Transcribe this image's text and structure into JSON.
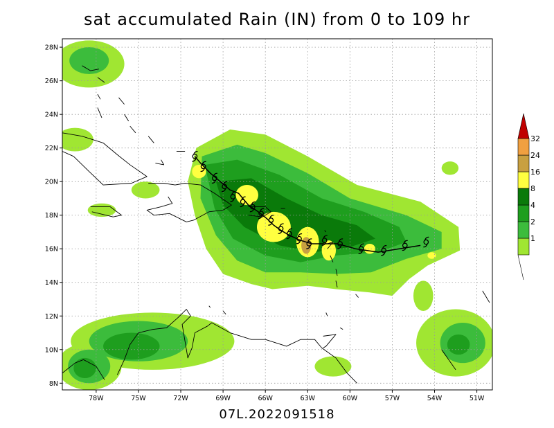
{
  "title": "sat accumulated Rain (IN) from 0 to 109 hr",
  "footer": "07L.2022091518",
  "lon_ticks": [
    {
      "lon": -78,
      "label": "78W"
    },
    {
      "lon": -75,
      "label": "75W"
    },
    {
      "lon": -72,
      "label": "72W"
    },
    {
      "lon": -69,
      "label": "69W"
    },
    {
      "lon": -66,
      "label": "66W"
    },
    {
      "lon": -63,
      "label": "63W"
    },
    {
      "lon": -60,
      "label": "60W"
    },
    {
      "lon": -57,
      "label": "57W"
    },
    {
      "lon": -54,
      "label": "54W"
    },
    {
      "lon": -51,
      "label": "51W"
    }
  ],
  "lat_ticks": [
    {
      "lat": 8,
      "label": "8N"
    },
    {
      "lat": 10,
      "label": "10N"
    },
    {
      "lat": 12,
      "label": "12N"
    },
    {
      "lat": 14,
      "label": "14N"
    },
    {
      "lat": 16,
      "label": "16N"
    },
    {
      "lat": 18,
      "label": "18N"
    },
    {
      "lat": 20,
      "label": "20N"
    },
    {
      "lat": 22,
      "label": "22N"
    },
    {
      "lat": 24,
      "label": "24N"
    },
    {
      "lat": 26,
      "label": "26N"
    },
    {
      "lat": 28,
      "label": "28N"
    }
  ],
  "extent": {
    "lon_min": -80.4,
    "lon_max": -49.9,
    "lat_min": 7.6,
    "lat_max": 28.5
  },
  "legend": {
    "labels": [
      "1",
      "2",
      "4",
      "8",
      "16",
      "24",
      "32"
    ],
    "colors": [
      "#a0e632",
      "#3cbc3c",
      "#1e9e1e",
      "#0a7a0a",
      "#ffff40",
      "#c8a040",
      "#f0a040",
      "#c00000"
    ]
  },
  "rain_areas": [
    {
      "level": 0,
      "shape": "polygon",
      "points": [
        [
          -70.9,
          22.0
        ],
        [
          -68.5,
          23.1
        ],
        [
          -66,
          22.8
        ],
        [
          -63,
          21.5
        ],
        [
          -59.5,
          19.8
        ],
        [
          -55,
          18.8
        ],
        [
          -52.3,
          17.3
        ],
        [
          -52.2,
          15.9
        ],
        [
          -54.5,
          15.0
        ],
        [
          -55.8,
          14.2
        ],
        [
          -57,
          13.2
        ],
        [
          -58.6,
          13.4
        ],
        [
          -61,
          13.6
        ],
        [
          -63,
          13.8
        ],
        [
          -65.5,
          13.6
        ],
        [
          -67,
          13.9
        ],
        [
          -69,
          14.5
        ],
        [
          -70.2,
          16.0
        ],
        [
          -71.0,
          18.0
        ],
        [
          -71.5,
          20.0
        ]
      ]
    },
    {
      "level": 0,
      "shape": "ellipse",
      "cx": -74,
      "cy": 10.5,
      "rx": 5.8,
      "ry": 1.7
    },
    {
      "level": 0,
      "shape": "ellipse",
      "cx": -78.5,
      "cy": 9.0,
      "rx": 2.3,
      "ry": 1.4
    },
    {
      "level": 0,
      "shape": "ellipse",
      "cx": -52.5,
      "cy": 10.4,
      "rx": 2.8,
      "ry": 2.0
    },
    {
      "level": 0,
      "shape": "ellipse",
      "cx": -78.5,
      "cy": 27.0,
      "rx": 2.5,
      "ry": 1.4
    },
    {
      "level": 0,
      "shape": "ellipse",
      "cx": -79.5,
      "cy": 22.5,
      "rx": 1.3,
      "ry": 0.7
    },
    {
      "level": 0,
      "shape": "ellipse",
      "cx": -77.6,
      "cy": 18.3,
      "rx": 1.0,
      "ry": 0.4
    },
    {
      "level": 0,
      "shape": "ellipse",
      "cx": -74.5,
      "cy": 19.5,
      "rx": 1.0,
      "ry": 0.5
    },
    {
      "level": 0,
      "shape": "ellipse",
      "cx": -52.9,
      "cy": 20.8,
      "rx": 0.6,
      "ry": 0.4
    },
    {
      "level": 0,
      "shape": "ellipse",
      "cx": -61.2,
      "cy": 9.0,
      "rx": 1.3,
      "ry": 0.6
    },
    {
      "level": 0,
      "shape": "ellipse",
      "cx": -54.8,
      "cy": 13.2,
      "rx": 0.7,
      "ry": 0.9
    },
    {
      "level": 1,
      "shape": "polygon",
      "points": [
        [
          -70.5,
          21.5
        ],
        [
          -68,
          22.2
        ],
        [
          -66,
          21.7
        ],
        [
          -63,
          20.5
        ],
        [
          -60,
          19.0
        ],
        [
          -56,
          18.0
        ],
        [
          -53.5,
          17.0
        ],
        [
          -53.5,
          16.0
        ],
        [
          -56,
          15.4
        ],
        [
          -58.5,
          14.6
        ],
        [
          -61,
          14.5
        ],
        [
          -63.5,
          14.6
        ],
        [
          -66,
          14.6
        ],
        [
          -68,
          15.3
        ],
        [
          -69.5,
          16.8
        ],
        [
          -70.6,
          19.0
        ]
      ]
    },
    {
      "level": 1,
      "shape": "ellipse",
      "cx": -75,
      "cy": 10.5,
      "rx": 3.5,
      "ry": 1.2
    },
    {
      "level": 1,
      "shape": "ellipse",
      "cx": -78.5,
      "cy": 9.0,
      "rx": 1.5,
      "ry": 1.0
    },
    {
      "level": 1,
      "shape": "ellipse",
      "cx": -52.0,
      "cy": 10.4,
      "rx": 1.6,
      "ry": 1.2
    },
    {
      "level": 1,
      "shape": "ellipse",
      "cx": -78.5,
      "cy": 27.2,
      "rx": 1.4,
      "ry": 0.8
    },
    {
      "level": 2,
      "shape": "polygon",
      "points": [
        [
          -70.3,
          21.0
        ],
        [
          -68,
          21.3
        ],
        [
          -65,
          20.4
        ],
        [
          -62,
          19.0
        ],
        [
          -59,
          18.2
        ],
        [
          -56.5,
          17.3
        ],
        [
          -56,
          16.4
        ],
        [
          -58,
          15.8
        ],
        [
          -61,
          15.6
        ],
        [
          -63.5,
          15.2
        ],
        [
          -66,
          15.6
        ],
        [
          -68.3,
          16.6
        ],
        [
          -69.6,
          18.4
        ]
      ]
    },
    {
      "level": 2,
      "shape": "ellipse",
      "cx": -75.5,
      "cy": 10.2,
      "rx": 2.0,
      "ry": 0.8
    },
    {
      "level": 2,
      "shape": "ellipse",
      "cx": -78.8,
      "cy": 8.9,
      "rx": 0.8,
      "ry": 0.6
    },
    {
      "level": 2,
      "shape": "ellipse",
      "cx": -52.3,
      "cy": 10.3,
      "rx": 0.8,
      "ry": 0.6
    },
    {
      "level": 3,
      "shape": "polygon",
      "points": [
        [
          -69.5,
          20.0
        ],
        [
          -67,
          20.2
        ],
        [
          -64.5,
          19.0
        ],
        [
          -62,
          18.0
        ],
        [
          -59.5,
          17.4
        ],
        [
          -58.2,
          16.6
        ],
        [
          -60,
          16.1
        ],
        [
          -62.5,
          15.8
        ],
        [
          -65,
          16.2
        ],
        [
          -67.5,
          17.3
        ],
        [
          -69,
          18.6
        ]
      ]
    },
    {
      "level": 4,
      "shape": "ellipse",
      "cx": -70.7,
      "cy": 20.6,
      "rx": 0.5,
      "ry": 0.4
    },
    {
      "level": 4,
      "shape": "ellipse",
      "cx": -67.3,
      "cy": 19.2,
      "rx": 0.8,
      "ry": 0.6
    },
    {
      "level": 4,
      "shape": "ellipse",
      "cx": -65.4,
      "cy": 17.3,
      "rx": 1.2,
      "ry": 0.9
    },
    {
      "level": 4,
      "shape": "ellipse",
      "cx": -63.0,
      "cy": 16.4,
      "rx": 0.8,
      "ry": 0.9
    },
    {
      "level": 4,
      "shape": "ellipse",
      "cx": -61.5,
      "cy": 15.9,
      "rx": 0.5,
      "ry": 0.6
    },
    {
      "level": 4,
      "shape": "ellipse",
      "cx": -58.6,
      "cy": 16.0,
      "rx": 0.4,
      "ry": 0.3
    },
    {
      "level": 4,
      "shape": "ellipse",
      "cx": -54.2,
      "cy": 15.6,
      "rx": 0.3,
      "ry": 0.2
    },
    {
      "level": 5,
      "shape": "ellipse",
      "cx": -63.1,
      "cy": 16.2,
      "rx": 0.35,
      "ry": 0.5
    }
  ],
  "coastlines": [
    [
      [
        -80.4,
        22.9
      ],
      [
        -79,
        22.7
      ],
      [
        -77.5,
        22.3
      ],
      [
        -76.5,
        21.6
      ],
      [
        -75.6,
        21.0
      ],
      [
        -74.4,
        20.3
      ],
      [
        -75.5,
        19.9
      ],
      [
        -77.5,
        19.8
      ],
      [
        -78.5,
        20.6
      ],
      [
        -79.6,
        21.5
      ],
      [
        -80.4,
        21.8
      ]
    ],
    [
      [
        -74.3,
        19.9
      ],
      [
        -73.2,
        19.9
      ],
      [
        -72.4,
        19.8
      ],
      [
        -71.7,
        19.9
      ],
      [
        -70.6,
        19.8
      ],
      [
        -69.6,
        19.3
      ],
      [
        -68.4,
        18.6
      ],
      [
        -69.0,
        18.3
      ],
      [
        -70.0,
        18.2
      ],
      [
        -71.1,
        17.7
      ],
      [
        -71.6,
        17.6
      ],
      [
        -72.8,
        18.1
      ],
      [
        -73.9,
        18.0
      ],
      [
        -74.4,
        18.3
      ],
      [
        -73.4,
        18.5
      ],
      [
        -72.6,
        18.7
      ],
      [
        -72.9,
        19.1
      ]
    ],
    [
      [
        -67.2,
        18.5
      ],
      [
        -66.0,
        18.5
      ],
      [
        -65.6,
        18.2
      ],
      [
        -66.2,
        17.9
      ],
      [
        -67.2,
        18.0
      ]
    ],
    [
      [
        -78.4,
        18.5
      ],
      [
        -77.0,
        18.5
      ],
      [
        -76.2,
        18.0
      ],
      [
        -76.8,
        17.9
      ],
      [
        -78.3,
        18.2
      ]
    ],
    [
      [
        -64.9,
        18.4
      ],
      [
        -64.6,
        18.4
      ]
    ],
    [
      [
        -61.8,
        17.1
      ],
      [
        -61.7,
        17.0
      ]
    ],
    [
      [
        -61.6,
        16.3
      ],
      [
        -61.2,
        16.4
      ],
      [
        -61.6,
        16.0
      ]
    ],
    [
      [
        -61.4,
        15.6
      ],
      [
        -61.2,
        15.2
      ]
    ],
    [
      [
        -61.0,
        14.8
      ],
      [
        -60.9,
        14.4
      ]
    ],
    [
      [
        -61.0,
        14.1
      ],
      [
        -60.9,
        13.7
      ]
    ],
    [
      [
        -59.6,
        13.3
      ],
      [
        -59.4,
        13.1
      ]
    ],
    [
      [
        -61.7,
        12.2
      ],
      [
        -61.6,
        12.0
      ]
    ],
    [
      [
        -60.7,
        11.3
      ],
      [
        -60.5,
        11.2
      ]
    ],
    [
      [
        -61.9,
        10.8
      ],
      [
        -61.0,
        10.9
      ],
      [
        -61.7,
        10.2
      ],
      [
        -61.9,
        10.1
      ]
    ],
    [
      [
        -70.0,
        12.6
      ],
      [
        -69.9,
        12.5
      ]
    ],
    [
      [
        -69.0,
        12.3
      ],
      [
        -68.8,
        12.1
      ]
    ],
    [
      [
        -76.5,
        8.5
      ],
      [
        -76.0,
        9.4
      ],
      [
        -75.6,
        10.3
      ],
      [
        -75.0,
        11.0
      ],
      [
        -74.0,
        11.2
      ],
      [
        -73.0,
        11.3
      ],
      [
        -72.2,
        11.9
      ],
      [
        -71.6,
        12.4
      ],
      [
        -71.3,
        12.0
      ],
      [
        -71.9,
        11.5
      ],
      [
        -71.7,
        10.5
      ],
      [
        -71.5,
        9.5
      ],
      [
        -71.2,
        10.1
      ],
      [
        -71.0,
        11.0
      ],
      [
        -70.1,
        11.4
      ],
      [
        -69.8,
        11.6
      ],
      [
        -68.5,
        11.0
      ],
      [
        -67.0,
        10.6
      ],
      [
        -66.0,
        10.6
      ],
      [
        -64.5,
        10.2
      ],
      [
        -63.5,
        10.6
      ],
      [
        -62.5,
        10.6
      ],
      [
        -62.0,
        10.1
      ],
      [
        -61.0,
        9.5
      ],
      [
        -60.2,
        8.6
      ],
      [
        -59.5,
        8.0
      ]
    ],
    [
      [
        -80.4,
        8.6
      ],
      [
        -79.5,
        9.2
      ],
      [
        -78.9,
        9.4
      ],
      [
        -78.0,
        9.0
      ],
      [
        -77.4,
        8.2
      ]
    ],
    [
      [
        -53.5,
        10.0
      ],
      [
        -52.5,
        8.8
      ]
    ],
    [
      [
        -50.6,
        13.5
      ],
      [
        -50.1,
        12.8
      ]
    ],
    [
      [
        -79.0,
        26.9
      ],
      [
        -78.4,
        26.6
      ],
      [
        -77.8,
        26.7
      ]
    ],
    [
      [
        -77.9,
        26.2
      ],
      [
        -77.4,
        25.9
      ]
    ],
    [
      [
        -77.9,
        25.2
      ],
      [
        -77.7,
        24.9
      ]
    ],
    [
      [
        -76.4,
        25.0
      ],
      [
        -76.0,
        24.6
      ]
    ],
    [
      [
        -77.9,
        24.4
      ],
      [
        -77.6,
        23.8
      ]
    ],
    [
      [
        -76.0,
        24.0
      ],
      [
        -75.7,
        23.6
      ]
    ],
    [
      [
        -75.6,
        23.3
      ],
      [
        -75.2,
        22.9
      ]
    ],
    [
      [
        -74.3,
        22.7
      ],
      [
        -73.9,
        22.3
      ]
    ],
    [
      [
        -73.8,
        21.1
      ],
      [
        -73.2,
        21.0
      ],
      [
        -73.4,
        21.3
      ]
    ],
    [
      [
        -72.3,
        21.8
      ],
      [
        -71.7,
        21.8
      ]
    ]
  ],
  "track": {
    "points": [
      [
        -71.0,
        21.5
      ],
      [
        -70.6,
        21.1
      ],
      [
        -69.9,
        20.5
      ],
      [
        -69.2,
        20.0
      ],
      [
        -68.5,
        19.5
      ],
      [
        -67.9,
        19.3
      ],
      [
        -67.2,
        18.6
      ],
      [
        -66.5,
        18.2
      ],
      [
        -65.9,
        17.8
      ],
      [
        -65.4,
        17.4
      ],
      [
        -64.9,
        17.1
      ],
      [
        -64.3,
        16.8
      ],
      [
        -63.5,
        16.5
      ],
      [
        -62.7,
        16.3
      ],
      [
        -61.9,
        16.3
      ],
      [
        -60.9,
        16.3
      ],
      [
        -59.6,
        16.0
      ],
      [
        -58.0,
        15.8
      ],
      [
        -56.5,
        16.0
      ],
      [
        -55.0,
        16.2
      ]
    ],
    "symbols": [
      [
        -71.0,
        21.5
      ],
      [
        -70.4,
        20.9
      ],
      [
        -69.6,
        20.2
      ],
      [
        -68.9,
        19.7
      ],
      [
        -68.3,
        19.1
      ],
      [
        -67.6,
        18.8
      ],
      [
        -66.9,
        18.5
      ],
      [
        -66.3,
        18.1
      ],
      [
        -65.6,
        17.7
      ],
      [
        -64.9,
        17.2
      ],
      [
        -64.3,
        16.9
      ],
      [
        -63.6,
        16.6
      ],
      [
        -62.9,
        16.3
      ],
      [
        -61.8,
        16.5
      ],
      [
        -60.7,
        16.3
      ],
      [
        -59.2,
        16.0
      ],
      [
        -57.6,
        15.9
      ],
      [
        -56.1,
        16.2
      ],
      [
        -54.6,
        16.4
      ]
    ]
  }
}
